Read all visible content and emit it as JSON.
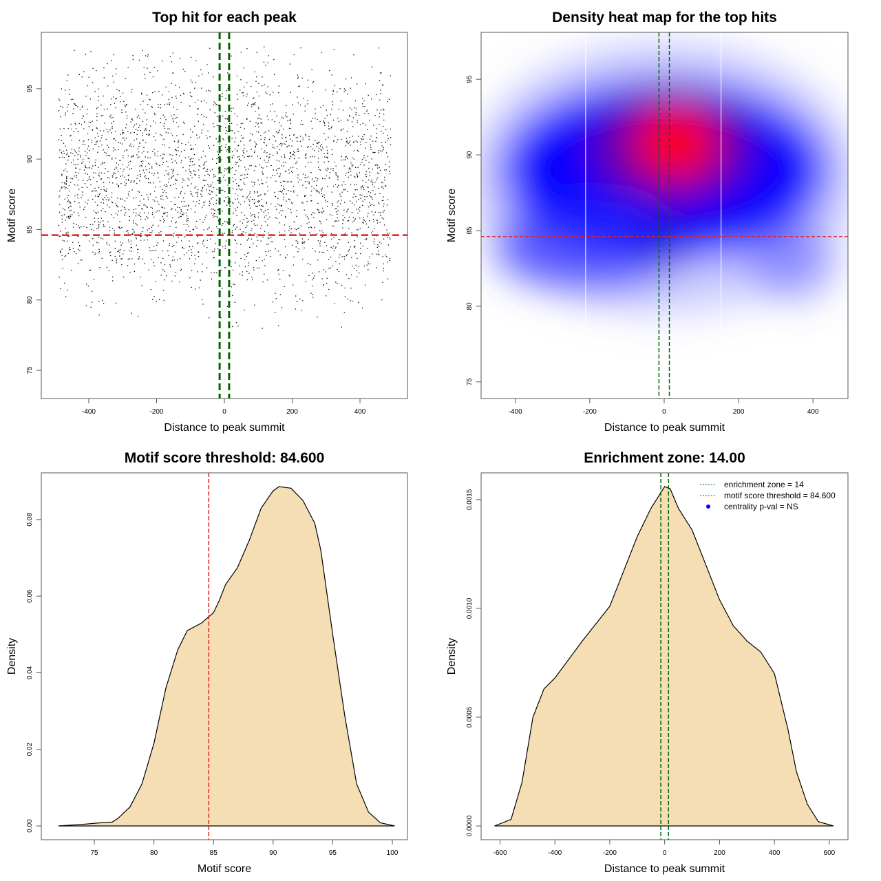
{
  "chart_data": [
    {
      "type": "scatter",
      "title": "Top hit for each peak",
      "xlabel": "Distance to peak summit",
      "ylabel": "Motif score",
      "xlim": [
        -540,
        540
      ],
      "ylim": [
        73,
        99
      ],
      "xticks": [
        -400,
        -200,
        0,
        200,
        400
      ],
      "yticks": [
        75,
        80,
        85,
        90,
        95
      ],
      "points_summary": {
        "n": 3000,
        "x_range": [
          -490,
          490
        ],
        "y_mean": 88.5,
        "y_sd": 4.0,
        "y_range": [
          74,
          98
        ]
      },
      "hlines": [
        {
          "y": 84.6,
          "color": "#e02020",
          "style": "dashed"
        }
      ],
      "vlines": [
        {
          "x": -14,
          "color": "#006400",
          "style": "dashed"
        },
        {
          "x": 14,
          "color": "#006400",
          "style": "dashed"
        }
      ]
    },
    {
      "type": "heatmap",
      "title": "Density heat map for the top hits",
      "xlabel": "Distance to peak summit",
      "ylabel": "Motif score",
      "xlim": [
        -492,
        494
      ],
      "ylim": [
        73.9,
        98.1
      ],
      "xticks": [
        -400,
        -200,
        0,
        200,
        400
      ],
      "yticks": [
        75,
        80,
        85,
        90,
        95
      ],
      "density_blobs": [
        {
          "x": 0,
          "y": 88.5,
          "rx": 520,
          "ry": 9,
          "color": "#c8c8ff",
          "opacity": 0.9
        },
        {
          "x": 0,
          "y": 89,
          "rx": 440,
          "ry": 6,
          "color": "#0000ff",
          "opacity": 1
        },
        {
          "x": -200,
          "y": 84,
          "rx": 260,
          "ry": 3,
          "color": "#2a2aff",
          "opacity": 0.7
        },
        {
          "x": 340,
          "y": 83,
          "rx": 120,
          "ry": 2.5,
          "color": "#6060ff",
          "opacity": 0.6
        },
        {
          "x": 20,
          "y": 90.5,
          "rx": 220,
          "ry": 3.8,
          "color": "#6a00a0",
          "opacity": 0.9
        },
        {
          "x": 30,
          "y": 90.8,
          "rx": 110,
          "ry": 2.4,
          "color": "#ff0000",
          "opacity": 1
        },
        {
          "x": 0,
          "y": 84,
          "rx": 60,
          "ry": 1.5,
          "color": "#0000c0",
          "opacity": 0.7
        }
      ],
      "white_vlines": [
        -211,
        153
      ],
      "hlines": [
        {
          "y": 84.6,
          "color": "#e02020",
          "style": "dashed"
        }
      ],
      "vlines": [
        {
          "x": -14,
          "color": "#006400",
          "style": "dashed"
        },
        {
          "x": 14,
          "color": "#006400",
          "style": "dashed"
        }
      ]
    },
    {
      "type": "area",
      "title": "Motif score threshold: 84.600",
      "xlabel": "Motif score",
      "ylabel": "Density",
      "xlim": [
        70.55,
        101.27
      ],
      "ylim": [
        -0.0036,
        0.0922
      ],
      "xticks": [
        75,
        80,
        85,
        90,
        95,
        100
      ],
      "yticks": [
        0,
        0.02,
        0.04,
        0.06,
        0.08
      ],
      "ytick_labels": [
        "0.00",
        "0.02",
        "0.04",
        "0.06",
        "0.08"
      ],
      "x": [
        72,
        74,
        75.5,
        76.5,
        77,
        78,
        79,
        80,
        81,
        82,
        82.8,
        84,
        85,
        85.5,
        86,
        87,
        88,
        89,
        90,
        90.5,
        91.5,
        92.5,
        93.5,
        94,
        95,
        96,
        97,
        98,
        99,
        100.2
      ],
      "y": [
        0,
        0.0004,
        0.0008,
        0.001,
        0.002,
        0.005,
        0.011,
        0.0216,
        0.036,
        0.046,
        0.051,
        0.053,
        0.0557,
        0.059,
        0.063,
        0.0674,
        0.0746,
        0.083,
        0.0875,
        0.0886,
        0.0882,
        0.085,
        0.079,
        0.072,
        0.05,
        0.029,
        0.011,
        0.0036,
        0.0008,
        0
      ],
      "fill": "#F5DEB3",
      "vlines": [
        {
          "x": 84.6,
          "color": "#e02020",
          "style": "dashed"
        }
      ]
    },
    {
      "type": "area",
      "title": "Enrichment zone: 14.00",
      "xlabel": "Distance to peak summit",
      "ylabel": "Density",
      "xlim": [
        -669,
        668
      ],
      "ylim": [
        -6.33e-05,
        0.001623
      ],
      "xticks": [
        -600,
        -400,
        -200,
        0,
        200,
        400,
        600
      ],
      "yticks": [
        0,
        0.0005,
        0.001,
        0.0015
      ],
      "ytick_labels": [
        "0.0000",
        "0.0005",
        "0.0010",
        "0.0015"
      ],
      "x": [
        -620,
        -560,
        -520,
        -480,
        -440,
        -400,
        -300,
        -200,
        -150,
        -100,
        -50,
        0,
        20,
        50,
        100,
        150,
        200,
        250,
        300,
        350,
        400,
        450,
        480,
        520,
        560,
        615
      ],
      "y": [
        0,
        3e-05,
        0.0002,
        0.0005,
        0.00063,
        0.00068,
        0.00085,
        0.00101,
        0.00117,
        0.00133,
        0.00146,
        0.00156,
        0.00155,
        0.00146,
        0.00136,
        0.0012,
        0.00104,
        0.00092,
        0.00085,
        0.0008,
        0.0007,
        0.00044,
        0.00025,
        0.0001,
        2e-05,
        0
      ],
      "fill": "#F5DEB3",
      "vlines": [
        {
          "x": -14,
          "color": "#006400",
          "style": "dashed"
        },
        {
          "x": 14,
          "color": "#006400",
          "style": "dashed"
        }
      ],
      "legend": {
        "position": "top-right",
        "entries": [
          {
            "label": "enrichment zone = 14",
            "color": "#006400",
            "symbol": "dotted-line"
          },
          {
            "label": "motif score threshold = 84.600",
            "color": "#ff0000",
            "symbol": "dotted-line"
          },
          {
            "label": "centrality p-val = NS",
            "color": "#0000ff",
            "symbol": "dot"
          }
        ]
      }
    }
  ]
}
